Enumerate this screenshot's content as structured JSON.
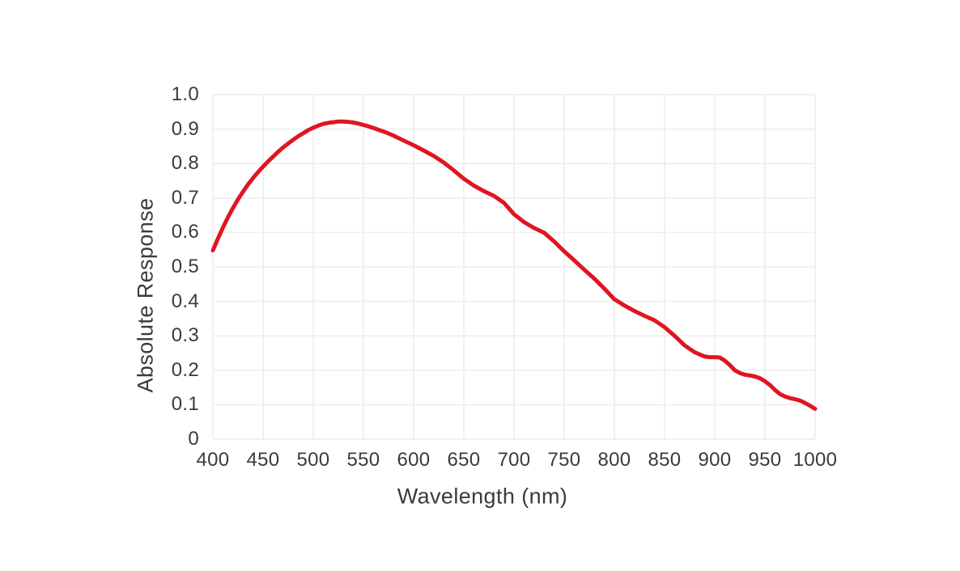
{
  "chart_data": {
    "type": "line",
    "title": "",
    "xlabel": "Wavelength (nm)",
    "ylabel": "Absolute Response",
    "xlim": [
      400,
      1000
    ],
    "ylim": [
      0,
      1
    ],
    "grid": true,
    "legend": "none",
    "x_ticks": [
      400,
      450,
      500,
      550,
      600,
      650,
      700,
      750,
      800,
      850,
      900,
      950,
      1000
    ],
    "x_tick_labels": [
      "400",
      "450",
      "500",
      "550",
      "600",
      "650",
      "700",
      "750",
      "800",
      "850",
      "900",
      "950",
      "1000"
    ],
    "y_ticks": [
      0,
      0.1,
      0.2,
      0.3,
      0.4,
      0.5,
      0.6,
      0.7,
      0.8,
      0.9,
      1.0
    ],
    "y_tick_labels": [
      "0",
      "0.1",
      "0.2",
      "0.3",
      "0.4",
      "0.5",
      "0.6",
      "0.7",
      "0.8",
      "0.9",
      "1.0"
    ],
    "series": [
      {
        "name": "Absolute Response",
        "color": "#e01522",
        "points": [
          [
            400,
            0.548
          ],
          [
            405,
            0.582
          ],
          [
            410,
            0.614
          ],
          [
            415,
            0.644
          ],
          [
            420,
            0.671
          ],
          [
            425,
            0.696
          ],
          [
            430,
            0.718
          ],
          [
            435,
            0.739
          ],
          [
            440,
            0.758
          ],
          [
            445,
            0.775
          ],
          [
            450,
            0.791
          ],
          [
            455,
            0.806
          ],
          [
            460,
            0.82
          ],
          [
            465,
            0.834
          ],
          [
            470,
            0.847
          ],
          [
            475,
            0.858
          ],
          [
            480,
            0.869
          ],
          [
            485,
            0.879
          ],
          [
            490,
            0.888
          ],
          [
            495,
            0.897
          ],
          [
            500,
            0.904
          ],
          [
            505,
            0.91
          ],
          [
            510,
            0.915
          ],
          [
            515,
            0.918
          ],
          [
            520,
            0.92
          ],
          [
            525,
            0.922
          ],
          [
            530,
            0.922
          ],
          [
            535,
            0.921
          ],
          [
            540,
            0.919
          ],
          [
            545,
            0.916
          ],
          [
            550,
            0.912
          ],
          [
            555,
            0.908
          ],
          [
            560,
            0.903
          ],
          [
            565,
            0.898
          ],
          [
            570,
            0.893
          ],
          [
            575,
            0.887
          ],
          [
            580,
            0.881
          ],
          [
            585,
            0.874
          ],
          [
            590,
            0.867
          ],
          [
            595,
            0.86
          ],
          [
            600,
            0.853
          ],
          [
            610,
            0.838
          ],
          [
            620,
            0.822
          ],
          [
            630,
            0.803
          ],
          [
            640,
            0.78
          ],
          [
            650,
            0.756
          ],
          [
            660,
            0.736
          ],
          [
            670,
            0.72
          ],
          [
            680,
            0.706
          ],
          [
            690,
            0.686
          ],
          [
            700,
            0.653
          ],
          [
            710,
            0.63
          ],
          [
            720,
            0.613
          ],
          [
            730,
            0.599
          ],
          [
            740,
            0.574
          ],
          [
            750,
            0.545
          ],
          [
            760,
            0.519
          ],
          [
            770,
            0.492
          ],
          [
            780,
            0.466
          ],
          [
            790,
            0.437
          ],
          [
            800,
            0.406
          ],
          [
            810,
            0.388
          ],
          [
            820,
            0.372
          ],
          [
            830,
            0.358
          ],
          [
            840,
            0.345
          ],
          [
            850,
            0.325
          ],
          [
            860,
            0.3
          ],
          [
            870,
            0.272
          ],
          [
            880,
            0.252
          ],
          [
            890,
            0.24
          ],
          [
            895,
            0.238
          ],
          [
            900,
            0.238
          ],
          [
            905,
            0.237
          ],
          [
            910,
            0.228
          ],
          [
            915,
            0.215
          ],
          [
            920,
            0.2
          ],
          [
            925,
            0.192
          ],
          [
            930,
            0.187
          ],
          [
            935,
            0.185
          ],
          [
            940,
            0.182
          ],
          [
            945,
            0.177
          ],
          [
            950,
            0.168
          ],
          [
            955,
            0.157
          ],
          [
            960,
            0.143
          ],
          [
            965,
            0.131
          ],
          [
            970,
            0.124
          ],
          [
            975,
            0.119
          ],
          [
            980,
            0.116
          ],
          [
            985,
            0.112
          ],
          [
            990,
            0.105
          ],
          [
            995,
            0.097
          ],
          [
            1000,
            0.088
          ]
        ]
      }
    ]
  },
  "style": {
    "background": "#ffffff",
    "grid_color": "#eef0f0",
    "plot_border_color": "#eef0f0",
    "text_color": "#3c3a3d",
    "line_width": 5
  }
}
